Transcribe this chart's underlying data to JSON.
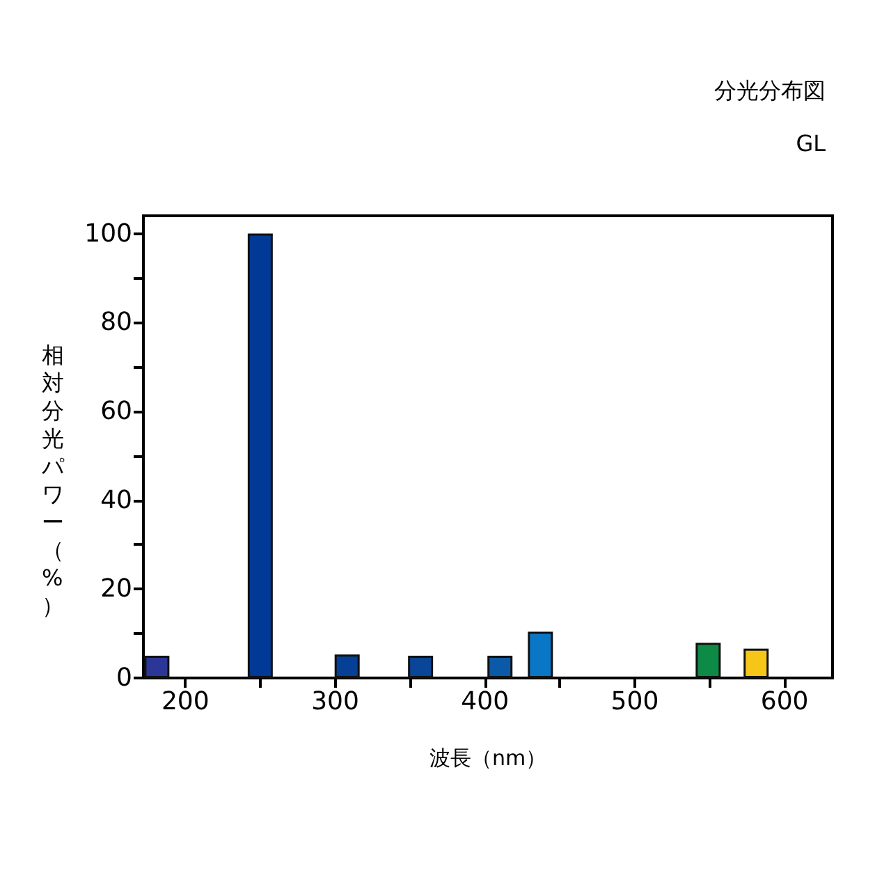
{
  "chart_data": {
    "type": "bar",
    "title": "分光分布図",
    "subtitle": "GL",
    "xlabel": "波長（nm）",
    "ylabel": "相対分光パワー（%）",
    "x": [
      181,
      250,
      308,
      357,
      410,
      437,
      549,
      581
    ],
    "values": [
      5,
      100,
      5.3,
      5,
      5,
      10.4,
      7.9,
      6.6
    ],
    "colors": [
      "#2b3797",
      "#003a96",
      "#063f96",
      "#0a4597",
      "#0b5aa8",
      "#0a76c6",
      "#0e8a47",
      "#f5c518"
    ],
    "xlim": [
      172,
      632
    ],
    "ylim": [
      0,
      104
    ],
    "xticks": [
      200,
      {
        "value": 250,
        "label": null
      },
      300,
      {
        "value": 350,
        "label": null
      },
      400,
      {
        "value": 450,
        "label": null
      },
      500,
      {
        "value": 550,
        "label": null
      },
      600
    ],
    "yticks": [
      0,
      {
        "value": 10,
        "label": null
      },
      20,
      {
        "value": 30,
        "label": null
      },
      40,
      {
        "value": 50,
        "label": null
      },
      60,
      {
        "value": 70,
        "label": null
      },
      80,
      {
        "value": 90,
        "label": null
      },
      100
    ]
  }
}
